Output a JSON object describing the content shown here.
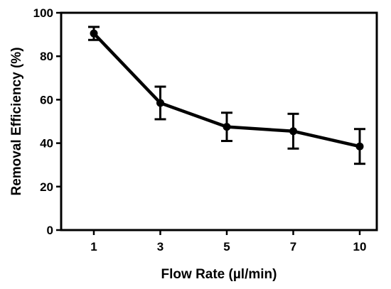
{
  "chart_data": {
    "type": "line",
    "title": "",
    "xlabel": "Flow Rate (µl/min)",
    "ylabel": "Removal Efficiency (%)",
    "categories": [
      "1",
      "3",
      "5",
      "7",
      "10"
    ],
    "series": [
      {
        "values": [
          90.5,
          58.5,
          47.5,
          45.5,
          38.5
        ],
        "error": [
          3,
          7.5,
          6.5,
          8,
          8
        ],
        "color": "#000000",
        "marker": "circle"
      }
    ],
    "ylim": [
      0,
      100
    ],
    "yticks": [
      0,
      20,
      40,
      60,
      80,
      100
    ],
    "grid": false,
    "legend": "none"
  }
}
